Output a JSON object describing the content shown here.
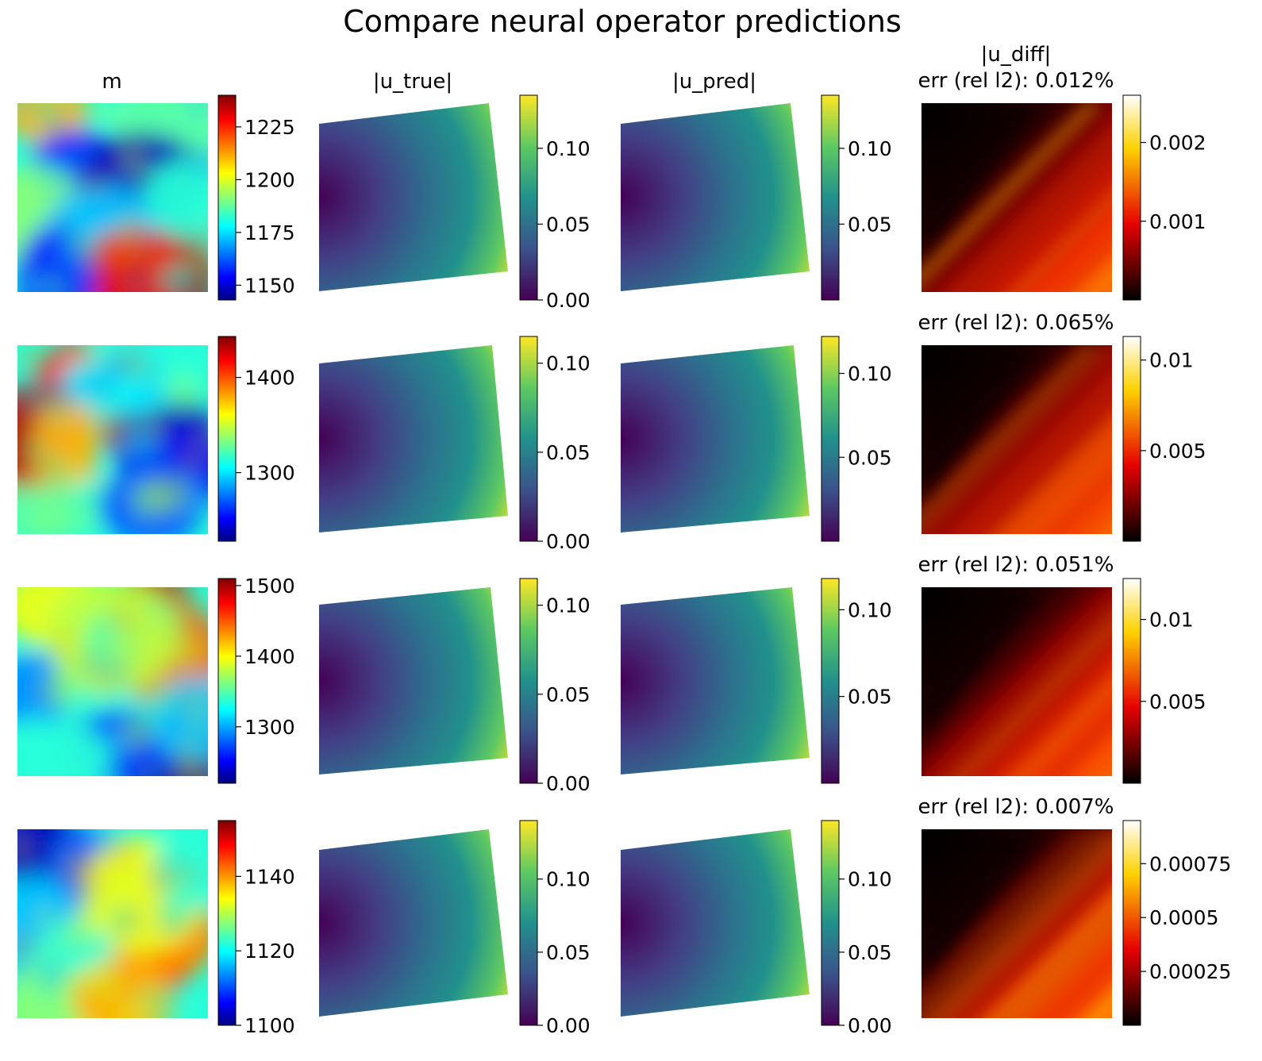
{
  "figure": {
    "title": "Compare neural operator predictions",
    "columns": [
      "m",
      "|u_true|",
      "|u_pred|",
      "|u_diff|"
    ]
  },
  "colormaps": {
    "jet": [
      "#00007f",
      "#0000ff",
      "#00ffff",
      "#ffff00",
      "#ff0000",
      "#7f0000"
    ],
    "viridis": [
      "#440154",
      "#3b528b",
      "#21918c",
      "#5ec962",
      "#fde725"
    ],
    "hot": [
      "#000000",
      "#e60000",
      "#ffd200",
      "#ffffff"
    ]
  },
  "chart_data": [
    {
      "row": 1,
      "panel": "m",
      "type": "heatmap",
      "title": "m",
      "cmap": "jet",
      "clim": [
        1143,
        1240
      ],
      "ticks": [
        "1150",
        "1175",
        "1200",
        "1225"
      ],
      "tick_values": [
        1150,
        1175,
        1200,
        1225
      ]
    },
    {
      "row": 1,
      "panel": "|u_true|",
      "type": "heatmap",
      "title": "|u_true|",
      "cmap": "viridis",
      "clim": [
        0,
        0.135
      ],
      "ticks": [
        "0.00",
        "0.05",
        "0.10"
      ],
      "tick_values": [
        0,
        0.05,
        0.1
      ]
    },
    {
      "row": 1,
      "panel": "|u_pred|",
      "type": "heatmap",
      "title": "|u_pred|",
      "cmap": "viridis",
      "clim": [
        0,
        0.135
      ],
      "ticks": [
        "0.05",
        "0.10"
      ],
      "tick_values": [
        0.05,
        0.1
      ]
    },
    {
      "row": 1,
      "panel": "|u_diff|",
      "type": "heatmap",
      "title": "err (rel l2): 0.012%",
      "cmap": "hot",
      "clim": [
        0,
        0.0026
      ],
      "ticks": [
        "0.001",
        "0.002"
      ],
      "tick_values": [
        0.001,
        0.002
      ]
    },
    {
      "row": 2,
      "panel": "m",
      "type": "heatmap",
      "title": "",
      "cmap": "jet",
      "clim": [
        1228,
        1443
      ],
      "ticks": [
        "1300",
        "1400"
      ],
      "tick_values": [
        1300,
        1400
      ]
    },
    {
      "row": 2,
      "panel": "|u_true|",
      "type": "heatmap",
      "title": "",
      "cmap": "viridis",
      "clim": [
        0,
        0.115
      ],
      "ticks": [
        "0.00",
        "0.05",
        "0.10"
      ],
      "tick_values": [
        0,
        0.05,
        0.1
      ]
    },
    {
      "row": 2,
      "panel": "|u_pred|",
      "type": "heatmap",
      "title": "",
      "cmap": "viridis",
      "clim": [
        0,
        0.122
      ],
      "ticks": [
        "0.05",
        "0.10"
      ],
      "tick_values": [
        0.05,
        0.1
      ]
    },
    {
      "row": 2,
      "panel": "|u_diff|",
      "type": "heatmap",
      "title": "err (rel l2): 0.065%",
      "cmap": "hot",
      "clim": [
        0,
        0.0113
      ],
      "ticks": [
        "0.005",
        "0.01"
      ],
      "tick_values": [
        0.005,
        0.01
      ]
    },
    {
      "row": 3,
      "panel": "m",
      "type": "heatmap",
      "title": "",
      "cmap": "jet",
      "clim": [
        1220,
        1510
      ],
      "ticks": [
        "1300",
        "1400",
        "1500"
      ],
      "tick_values": [
        1300,
        1400,
        1500
      ]
    },
    {
      "row": 3,
      "panel": "|u_true|",
      "type": "heatmap",
      "title": "",
      "cmap": "viridis",
      "clim": [
        0,
        0.115
      ],
      "ticks": [
        "0.00",
        "0.05",
        "0.10"
      ],
      "tick_values": [
        0,
        0.05,
        0.1
      ]
    },
    {
      "row": 3,
      "panel": "|u_pred|",
      "type": "heatmap",
      "title": "",
      "cmap": "viridis",
      "clim": [
        0,
        0.118
      ],
      "ticks": [
        "0.05",
        "0.10"
      ],
      "tick_values": [
        0.05,
        0.1
      ]
    },
    {
      "row": 3,
      "panel": "|u_diff|",
      "type": "heatmap",
      "title": "err (rel l2): 0.051%",
      "cmap": "hot",
      "clim": [
        0,
        0.0125
      ],
      "ticks": [
        "0.005",
        "0.01"
      ],
      "tick_values": [
        0.005,
        0.01
      ]
    },
    {
      "row": 4,
      "panel": "m",
      "type": "heatmap",
      "title": "",
      "cmap": "jet",
      "clim": [
        1100,
        1155
      ],
      "ticks": [
        "1100",
        "1120",
        "1140"
      ],
      "tick_values": [
        1100,
        1120,
        1140
      ]
    },
    {
      "row": 4,
      "panel": "|u_true|",
      "type": "heatmap",
      "title": "",
      "cmap": "viridis",
      "clim": [
        0,
        0.14
      ],
      "ticks": [
        "0.00",
        "0.05",
        "0.10"
      ],
      "tick_values": [
        0,
        0.05,
        0.1
      ]
    },
    {
      "row": 4,
      "panel": "|u_pred|",
      "type": "heatmap",
      "title": "",
      "cmap": "viridis",
      "clim": [
        0,
        0.14
      ],
      "ticks": [
        "0.00",
        "0.05",
        "0.10"
      ],
      "tick_values": [
        0,
        0.05,
        0.1
      ]
    },
    {
      "row": 4,
      "panel": "|u_diff|",
      "type": "heatmap",
      "title": "err (rel l2): 0.007%",
      "cmap": "hot",
      "clim": [
        0,
        0.00095
      ],
      "ticks": [
        "0.00025",
        "0.0005",
        "0.00075"
      ],
      "tick_values": [
        0.00025,
        0.0005,
        0.00075
      ]
    }
  ]
}
